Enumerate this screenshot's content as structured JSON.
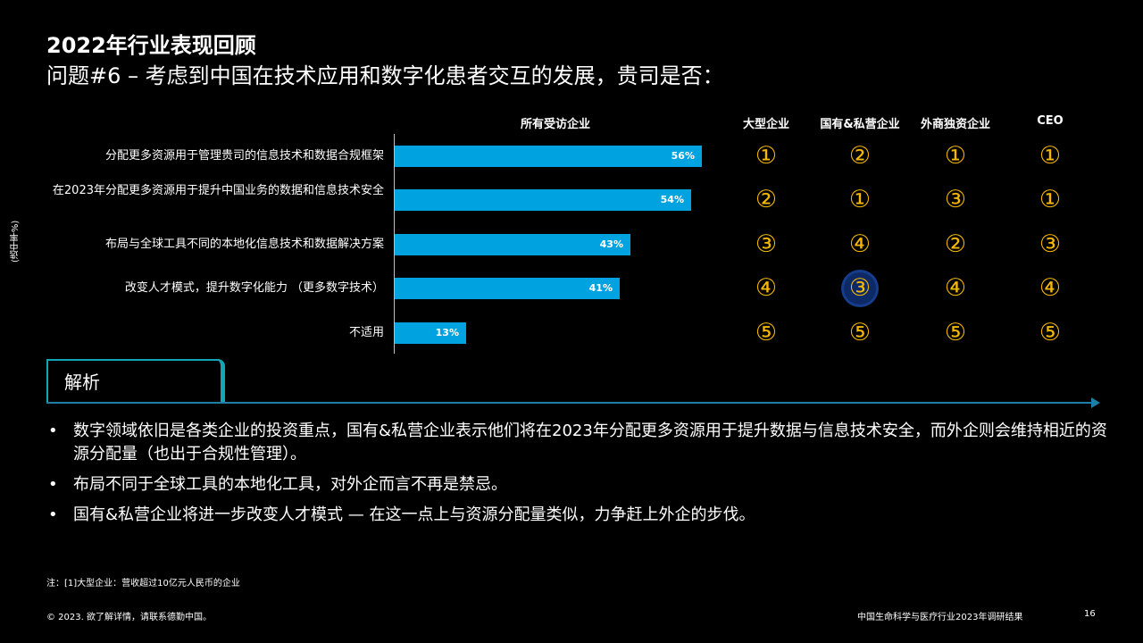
{
  "header": {
    "title": "2022年行业表现回顾",
    "subtitle": "问题#6 – 考虑到中国在技术应用和数字化患者交互的发展，贵司是否："
  },
  "y_axis_label": "(选中率%)",
  "columns": {
    "all": "所有受访企业",
    "large": "大型企业",
    "state_private": "国有&私营企业",
    "foreign": "外商独资企业",
    "ceo": "CEO"
  },
  "chart_data": {
    "type": "bar",
    "orientation": "horizontal",
    "categories": [
      "分配更多资源用于管理贵司的信息技术和数据合规框架",
      "在2023年分配更多资源用于提升中国业务的数据和信息技术安全",
      "布局与全球工具不同的本地化信息技术和数据解决方案",
      "改变人才模式，提升数字化能力 （更多数字技术）",
      "不适用"
    ],
    "values": [
      56,
      54,
      43,
      41,
      13
    ],
    "value_labels": [
      "56%",
      "54%",
      "43%",
      "41%",
      "13%"
    ],
    "xlim": [
      0,
      100
    ],
    "bar_color": "#00a3e0"
  },
  "rankings": {
    "large": [
      "①",
      "②",
      "③",
      "④",
      "⑤"
    ],
    "state_private": [
      "②",
      "①",
      "④",
      "③",
      "⑤"
    ],
    "foreign": [
      "①",
      "③",
      "②",
      "④",
      "⑤"
    ],
    "ceo": [
      "①",
      "①",
      "③",
      "④",
      "⑤"
    ],
    "highlight": {
      "column": "state_private",
      "row": 3
    },
    "color": "#f5b800"
  },
  "analysis": {
    "label": "解析",
    "bullets": [
      "数字领域依旧是各类企业的投资重点，国有&私营企业表示他们将在2023年分配更多资源用于提升数据与信息技术安全，而外企则会维持相近的资源分配量（也出于合规性管理）。",
      "布局不同于全球工具的本地化工具，对外企而言不再是禁忌。",
      "国有&私营企业将进一步改变人才模式 — 在这一点上与资源分配量类似，力争赶上外企的步伐。"
    ],
    "bullet_glyph": "•"
  },
  "note": "注：[1]大型企业：营收超过10亿元人民币的企业",
  "footer": {
    "copyright": "© 2023. 欲了解详情，请联系德勤中国。",
    "report": "中国生命科学与医疗行业2023年调研结果",
    "page": "16"
  },
  "colors": {
    "background": "#000000",
    "accent_teal": "#11a6b5",
    "highlight_circle": "#0d2a66"
  }
}
